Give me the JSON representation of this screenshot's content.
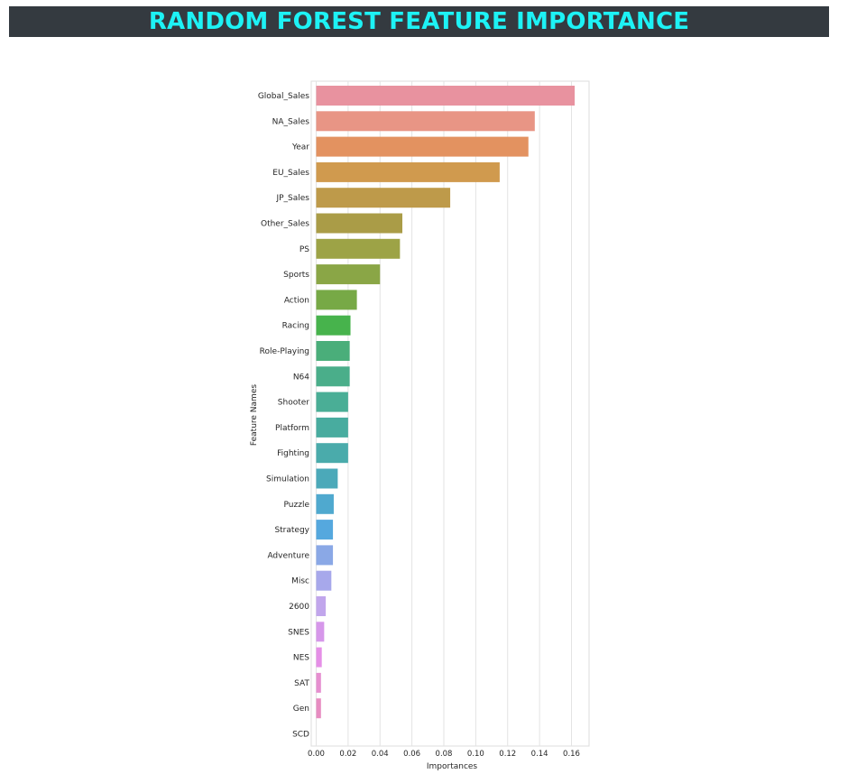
{
  "header": {
    "title": "RANDOM FOREST FEATURE IMPORTANCE"
  },
  "chart_data": {
    "type": "bar",
    "orientation": "horizontal",
    "xlabel": "Importances",
    "ylabel": "Feature Names",
    "xlim": [
      0,
      0.17
    ],
    "xticks": [
      "0.00",
      "0.02",
      "0.04",
      "0.06",
      "0.08",
      "0.10",
      "0.12",
      "0.14",
      "0.16"
    ],
    "grid": true,
    "categories": [
      "Global_Sales",
      "NA_Sales",
      "Year",
      "EU_Sales",
      "JP_Sales",
      "Other_Sales",
      "PS",
      "Sports",
      "Action",
      "Racing",
      "Role-Playing",
      "N64",
      "Shooter",
      "Platform",
      "Fighting",
      "Simulation",
      "Puzzle",
      "Strategy",
      "Adventure",
      "Misc",
      "2600",
      "SNES",
      "NES",
      "SAT",
      "Gen",
      "SCD"
    ],
    "values": [
      0.162,
      0.137,
      0.133,
      0.115,
      0.084,
      0.054,
      0.0525,
      0.04,
      0.0255,
      0.0215,
      0.021,
      0.021,
      0.02,
      0.02,
      0.02,
      0.0135,
      0.011,
      0.0105,
      0.0105,
      0.0095,
      0.006,
      0.005,
      0.0035,
      0.003,
      0.003,
      0.0
    ],
    "colors": [
      "#e8929f",
      "#e89585",
      "#e39260",
      "#d09a4e",
      "#be9a4a",
      "#aa9c47",
      "#9da346",
      "#8aa646",
      "#77a946",
      "#47b34c",
      "#4aae7a",
      "#4aae8a",
      "#4aae96",
      "#48ac9f",
      "#4aabab",
      "#4ba9b9",
      "#4fa9cf",
      "#55a8de",
      "#8aa8e6",
      "#a7a8eb",
      "#c1a6ec",
      "#d697ea",
      "#e58fe7",
      "#e68fd0",
      "#e78cc1",
      "#e88bb5"
    ]
  }
}
